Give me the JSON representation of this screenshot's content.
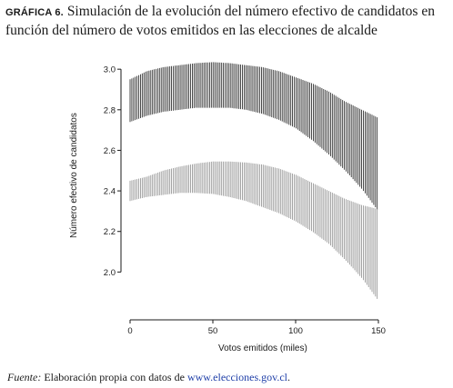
{
  "figure": {
    "label": "GRÁFICA 6.",
    "caption": "Simulación de la evolución del número efectivo de candidatos en función del número de votos emitidos en las elecciones de alcalde"
  },
  "source": {
    "prefix": "Fuente:",
    "text": "Elaboración propia con datos de ",
    "link": "www.elecciones.gov.cl",
    "suffix": "."
  },
  "chart_data": {
    "type": "area",
    "title": "",
    "xlabel": "Votos emitidos (miles)",
    "ylabel": "Número efectivo de candidatos",
    "xlim": [
      0,
      150
    ],
    "ylim": [
      1.8,
      3.05
    ],
    "xticks": [
      0,
      50,
      100,
      150
    ],
    "yticks": [
      2.0,
      2.2,
      2.4,
      2.6,
      2.8,
      3.0
    ],
    "grid": false,
    "legend": "none",
    "series": [
      {
        "color": "#1a1a1a",
        "x": [
          0,
          10,
          20,
          30,
          40,
          50,
          60,
          70,
          80,
          90,
          100,
          110,
          120,
          130,
          140,
          150
        ],
        "upper": [
          2.95,
          2.99,
          3.01,
          3.02,
          3.03,
          3.035,
          3.03,
          3.02,
          3.01,
          2.99,
          2.96,
          2.93,
          2.89,
          2.84,
          2.8,
          2.76
        ],
        "lower": [
          2.74,
          2.77,
          2.79,
          2.8,
          2.81,
          2.81,
          2.81,
          2.8,
          2.78,
          2.75,
          2.71,
          2.65,
          2.58,
          2.5,
          2.41,
          2.3
        ]
      },
      {
        "color": "#8c8c8c",
        "x": [
          0,
          10,
          20,
          30,
          40,
          50,
          60,
          70,
          80,
          90,
          100,
          110,
          120,
          130,
          140,
          150
        ],
        "upper": [
          2.45,
          2.47,
          2.5,
          2.52,
          2.535,
          2.545,
          2.545,
          2.54,
          2.53,
          2.51,
          2.48,
          2.44,
          2.4,
          2.36,
          2.33,
          2.31
        ],
        "lower": [
          2.35,
          2.37,
          2.38,
          2.39,
          2.39,
          2.385,
          2.37,
          2.35,
          2.32,
          2.29,
          2.25,
          2.2,
          2.14,
          2.06,
          1.97,
          1.86
        ]
      }
    ]
  }
}
